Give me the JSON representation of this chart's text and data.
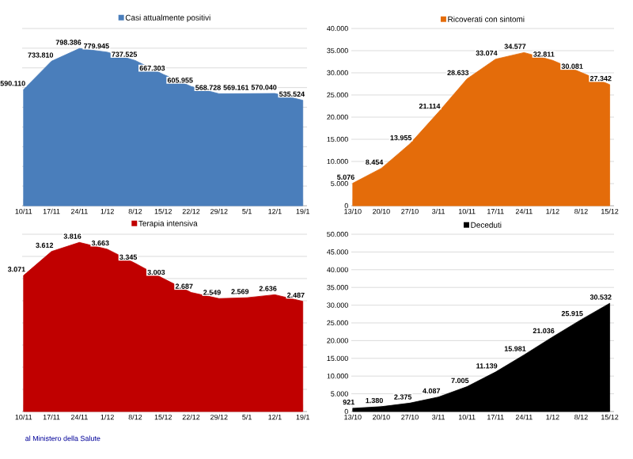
{
  "chart_data": [
    {
      "type": "area",
      "categories": [
        "10/11",
        "17/11",
        "24/11",
        "1/12",
        "8/12",
        "15/12",
        "22/12",
        "29/12",
        "5/1",
        "12/1",
        "19/1"
      ],
      "series": [
        {
          "name": "Casi attualmente positivi",
          "color": "#4a7ebb",
          "values": [
            590110,
            733810,
            798386,
            779945,
            737525,
            667303,
            605955,
            568728,
            569161,
            570040,
            535524
          ],
          "value_labels": [
            "590.110",
            "733.810",
            "798.386",
            "779.945",
            "737.525",
            "667.303",
            "605.955",
            "568.728",
            "569.161",
            "570.040",
            "535.524"
          ]
        }
      ],
      "ylim": [
        0,
        900000
      ],
      "yticks": [
        {
          "value": 0,
          "label": null
        },
        {
          "value": 100000,
          "label": null
        },
        {
          "value": 200000,
          "label": null
        },
        {
          "value": 300000,
          "label": null
        },
        {
          "value": 400000,
          "label": null
        },
        {
          "value": 500000,
          "label": null
        },
        {
          "value": 600000,
          "label": null
        },
        {
          "value": 700000,
          "label": null
        },
        {
          "value": 800000,
          "label": null
        },
        {
          "value": 900000,
          "label": null
        }
      ],
      "tick_labels": "x",
      "grid": "y",
      "legend": "top"
    },
    {
      "type": "area",
      "categories": [
        "13/10",
        "20/10",
        "27/10",
        "3/11",
        "10/11",
        "17/11",
        "24/11",
        "1/12",
        "8/12",
        "15/12"
      ],
      "series": [
        {
          "name": "Ricoverati con sintomi",
          "color": "#e46c0a",
          "values": [
            5076,
            8454,
            13955,
            21114,
            28633,
            33074,
            34577,
            32811,
            30081,
            27342
          ],
          "value_labels": [
            "5.076",
            "8.454",
            "13.955",
            "21.114",
            "28.633",
            "33.074",
            "34.577",
            "32.811",
            "30.081",
            "27.342"
          ]
        }
      ],
      "ylim": [
        0,
        40000
      ],
      "yticks": [
        {
          "value": 0,
          "label": "0"
        },
        {
          "value": 5000,
          "label": "5.000"
        },
        {
          "value": 10000,
          "label": "10.000"
        },
        {
          "value": 15000,
          "label": "15.000"
        },
        {
          "value": 20000,
          "label": "20.000"
        },
        {
          "value": 25000,
          "label": "25.000"
        },
        {
          "value": 30000,
          "label": "30.000"
        },
        {
          "value": 35000,
          "label": "35.000"
        },
        {
          "value": 40000,
          "label": "40.000"
        }
      ],
      "grid": "y",
      "legend": "top"
    },
    {
      "type": "area",
      "categories": [
        "10/11",
        "17/11",
        "24/11",
        "1/12",
        "8/12",
        "15/12",
        "22/12",
        "29/12",
        "5/1",
        "12/1",
        "19/1"
      ],
      "series": [
        {
          "name": "Terapia intensiva",
          "color": "#c00000",
          "values": [
            3071,
            3612,
            3816,
            3663,
            3345,
            3003,
            2687,
            2549,
            2569,
            2636,
            2487
          ],
          "value_labels": [
            "3.071",
            "3.612",
            "3.816",
            "3.663",
            "3.345",
            "3.003",
            "2.687",
            "2.549",
            "2.569",
            "2.636",
            "2.487"
          ]
        }
      ],
      "ylim": [
        0,
        4000
      ],
      "yticks": [
        {
          "value": 0,
          "label": null
        },
        {
          "value": 500,
          "label": null
        },
        {
          "value": 1000,
          "label": null
        },
        {
          "value": 1500,
          "label": null
        },
        {
          "value": 2000,
          "label": null
        },
        {
          "value": 2500,
          "label": null
        },
        {
          "value": 3000,
          "label": null
        },
        {
          "value": 3500,
          "label": null
        },
        {
          "value": 4000,
          "label": null
        }
      ],
      "tick_labels": "x",
      "grid": "y",
      "legend": "top",
      "annotations": [
        "al Ministero della Salute"
      ]
    },
    {
      "type": "area",
      "categories": [
        "13/10",
        "20/10",
        "27/10",
        "3/11",
        "10/11",
        "17/11",
        "24/11",
        "1/12",
        "8/12",
        "15/12"
      ],
      "series": [
        {
          "name": "Deceduti",
          "color": "#000000",
          "values": [
            921,
            1380,
            2375,
            4087,
            7005,
            11139,
            15981,
            21036,
            25915,
            30532
          ],
          "value_labels": [
            "921",
            "1.380",
            "2.375",
            "4.087",
            "7.005",
            "11.139",
            "15.981",
            "21.036",
            "25.915",
            "30.532"
          ]
        }
      ],
      "ylim": [
        0,
        50000
      ],
      "yticks": [
        {
          "value": 0,
          "label": "0"
        },
        {
          "value": 5000,
          "label": "5.000"
        },
        {
          "value": 10000,
          "label": "10.000"
        },
        {
          "value": 15000,
          "label": "15.000"
        },
        {
          "value": 20000,
          "label": "20.000"
        },
        {
          "value": 25000,
          "label": "25.000"
        },
        {
          "value": 30000,
          "label": "30.000"
        },
        {
          "value": 35000,
          "label": "35.000"
        },
        {
          "value": 40000,
          "label": "40.000"
        },
        {
          "value": 45000,
          "label": "45.000"
        },
        {
          "value": 50000,
          "label": "50.000"
        }
      ],
      "grid": "y",
      "legend": "top"
    }
  ]
}
